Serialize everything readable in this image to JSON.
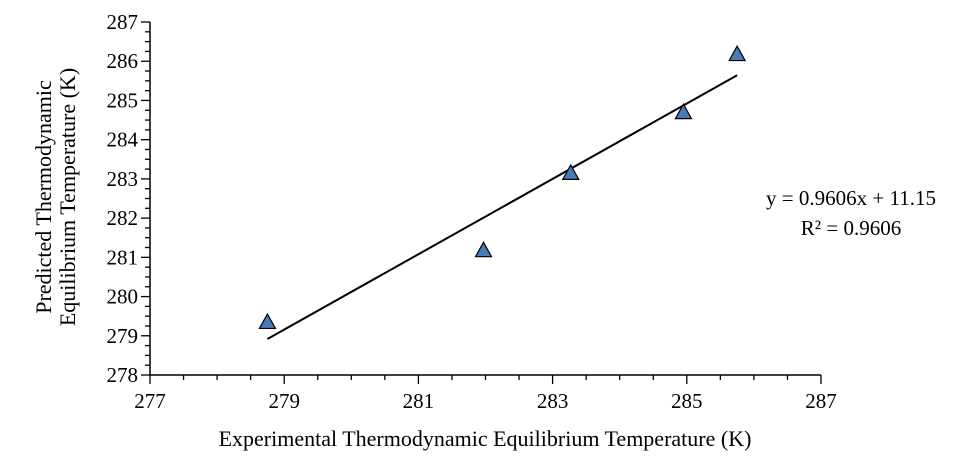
{
  "chart_data": {
    "type": "scatter",
    "title": "",
    "xlabel": "Experimental Thermodynamic Equilibrium Temperature (K)",
    "ylabel_lines": [
      "Predicted Thermodynamic",
      "Equilibrium Temperature (K)"
    ],
    "xlim": [
      277,
      287
    ],
    "ylim": [
      278,
      287
    ],
    "x_ticks": [
      277,
      279,
      281,
      283,
      285,
      287
    ],
    "y_ticks": [
      278,
      279,
      280,
      281,
      282,
      283,
      284,
      285,
      286,
      287
    ],
    "grid": false,
    "legend": "none",
    "marker": "triangle",
    "marker_color": "#4a7ab8",
    "points": [
      {
        "x": 278.75,
        "y": 279.35
      },
      {
        "x": 281.97,
        "y": 281.18
      },
      {
        "x": 283.27,
        "y": 283.15
      },
      {
        "x": 284.95,
        "y": 284.7
      },
      {
        "x": 285.75,
        "y": 286.18
      }
    ],
    "trendline": {
      "type": "linear",
      "slope": 0.9606,
      "intercept": 11.15,
      "x_range": [
        278.75,
        285.75
      ],
      "color": "#000000"
    },
    "annotations": [
      "y = 0.9606x + 11.15",
      "R² = 0.9606"
    ]
  }
}
